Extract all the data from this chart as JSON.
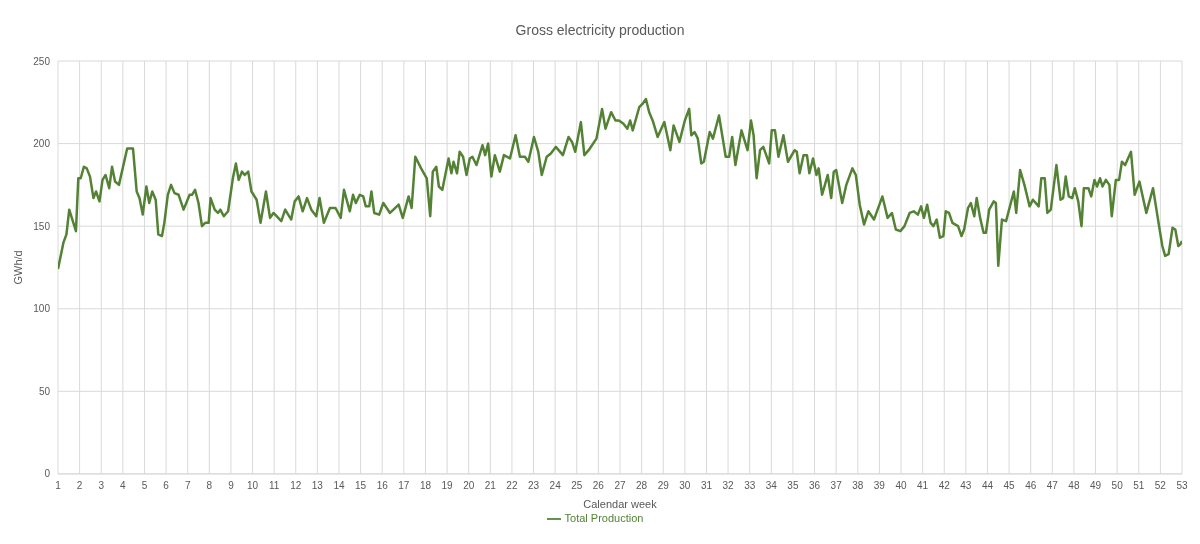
{
  "chart_data": {
    "type": "line",
    "title": "Gross electricity production",
    "xlabel": "Calendar week",
    "ylabel": "GWh/d",
    "grid": true,
    "legend": "bottom",
    "xlim": [
      1,
      53
    ],
    "xticks": [
      1,
      2,
      3,
      4,
      5,
      6,
      7,
      8,
      9,
      10,
      11,
      12,
      13,
      14,
      15,
      16,
      17,
      18,
      19,
      20,
      21,
      22,
      23,
      24,
      25,
      26,
      27,
      28,
      29,
      30,
      31,
      32,
      33,
      34,
      35,
      36,
      37,
      38,
      39,
      40,
      41,
      42,
      43,
      44,
      45,
      46,
      47,
      48,
      49,
      50,
      51,
      52,
      53
    ],
    "ylim": [
      0,
      250
    ],
    "yticks": [
      0,
      50,
      100,
      150,
      200,
      250
    ],
    "x": [
      1.0,
      1.25,
      1.39,
      1.52,
      1.83,
      1.94,
      2.05,
      2.2,
      2.33,
      2.48,
      2.64,
      2.76,
      2.92,
      3.06,
      3.2,
      3.37,
      3.5,
      3.64,
      3.82,
      4.2,
      4.47,
      4.64,
      4.77,
      4.92,
      5.09,
      5.22,
      5.36,
      5.52,
      5.64,
      5.81,
      5.92,
      6.08,
      6.23,
      6.39,
      6.58,
      6.81,
      7.09,
      7.2,
      7.34,
      7.5,
      7.66,
      7.81,
      7.97,
      8.06,
      8.25,
      8.4,
      8.51,
      8.67,
      8.87,
      9.09,
      9.23,
      9.36,
      9.51,
      9.64,
      9.8,
      9.95,
      10.19,
      10.37,
      10.62,
      10.81,
      10.97,
      11.33,
      11.51,
      11.79,
      11.95,
      12.13,
      12.32,
      12.52,
      12.72,
      12.95,
      13.1,
      13.3,
      13.58,
      13.84,
      14.08,
      14.23,
      14.5,
      14.65,
      14.78,
      14.96,
      15.12,
      15.24,
      15.4,
      15.5,
      15.63,
      15.86,
      16.05,
      16.36,
      16.76,
      16.95,
      17.22,
      17.36,
      17.53,
      17.8,
      18.06,
      18.22,
      18.34,
      18.5,
      18.62,
      18.78,
      19.07,
      19.2,
      19.3,
      19.46,
      19.58,
      19.74,
      19.9,
      20.05,
      20.17,
      20.36,
      20.64,
      20.76,
      20.9,
      21.05,
      21.21,
      21.44,
      21.63,
      21.91,
      22.17,
      22.37,
      22.6,
      22.76,
      23.02,
      23.22,
      23.38,
      23.61,
      23.8,
      24.03,
      24.36,
      24.62,
      24.78,
      24.93,
      25.19,
      25.35,
      25.55,
      25.91,
      26.17,
      26.33,
      26.59,
      26.79,
      26.95,
      27.16,
      27.34,
      27.47,
      27.59,
      27.89,
      28.04,
      28.2,
      28.35,
      28.51,
      28.74,
      29.05,
      29.33,
      29.48,
      29.75,
      30.0,
      30.2,
      30.3,
      30.45,
      30.6,
      30.76,
      30.88,
      31.15,
      31.3,
      31.58,
      31.89,
      32.05,
      32.19,
      32.34,
      32.62,
      32.9,
      33.06,
      33.18,
      33.32,
      33.48,
      33.63,
      33.9,
      34.02,
      34.17,
      34.33,
      34.56,
      34.77,
      35.08,
      35.18,
      35.31,
      35.49,
      35.65,
      35.76,
      35.93,
      36.09,
      36.19,
      36.35,
      36.61,
      36.77,
      36.89,
      37.0,
      37.28,
      37.47,
      37.75,
      37.91,
      38.09,
      38.29,
      38.49,
      38.75,
      39.14,
      39.38,
      39.58,
      39.76,
      39.97,
      40.16,
      40.4,
      40.59,
      40.78,
      40.93,
      41.06,
      41.21,
      41.37,
      41.5,
      41.65,
      41.8,
      41.96,
      42.07,
      42.22,
      42.38,
      42.64,
      42.8,
      42.92,
      43.1,
      43.23,
      43.39,
      43.5,
      43.66,
      43.82,
      43.93,
      44.08,
      44.29,
      44.39,
      44.5,
      44.67,
      44.86,
      45.0,
      45.22,
      45.33,
      45.51,
      45.71,
      45.95,
      46.1,
      46.37,
      46.49,
      46.65,
      46.77,
      46.93,
      47.19,
      47.38,
      47.5,
      47.62,
      47.76,
      47.92,
      48.04,
      48.2,
      48.35,
      48.46,
      48.67,
      48.8,
      48.95,
      49.07,
      49.21,
      49.32,
      49.48,
      49.64,
      49.75,
      49.94,
      50.09,
      50.22,
      50.37,
      50.64,
      50.81,
      51.03,
      51.35,
      51.66,
      51.94,
      52.09,
      52.22,
      52.38,
      52.56,
      52.69,
      52.83,
      52.92,
      53.0
    ],
    "series": [
      {
        "name": "Total Production",
        "color": "#548235",
        "values": [
          124,
          140,
          145,
          160,
          147,
          179,
          179,
          186,
          185,
          180,
          167,
          171,
          165,
          178,
          181,
          173,
          186,
          177,
          175,
          197,
          197,
          171,
          167,
          157,
          174,
          164,
          171,
          166,
          145,
          144,
          152,
          169,
          175,
          170,
          169,
          160,
          169,
          169,
          172,
          164,
          150,
          152,
          152,
          167,
          160,
          158,
          160,
          156,
          159,
          179,
          188,
          178,
          183,
          181,
          183,
          171,
          166,
          152,
          171,
          155,
          158,
          153,
          160,
          154,
          165,
          168,
          159,
          167,
          160,
          156,
          167,
          152,
          161,
          161,
          155,
          172,
          159,
          169,
          164,
          169,
          168,
          162,
          162,
          171,
          158,
          157,
          164,
          158,
          163,
          155,
          168,
          161,
          192,
          185,
          179,
          156,
          183,
          186,
          174,
          172,
          191,
          182,
          189,
          182,
          195,
          192,
          181,
          191,
          192,
          187,
          199,
          193,
          200,
          180,
          193,
          183,
          193,
          191,
          205,
          192,
          192,
          189,
          204,
          195,
          181,
          192,
          194,
          198,
          193,
          204,
          201,
          195,
          213,
          193,
          196,
          203,
          221,
          209,
          219,
          214,
          214,
          212,
          209,
          214,
          208,
          222,
          224,
          227,
          219,
          214,
          204,
          213,
          196,
          211,
          201,
          214,
          221,
          205,
          207,
          203,
          188,
          189,
          207,
          203,
          217,
          192,
          192,
          204,
          187,
          208,
          196,
          214,
          205,
          179,
          196,
          198,
          188,
          208,
          208,
          192,
          205,
          189,
          196,
          195,
          182,
          193,
          193,
          182,
          191,
          181,
          185,
          169,
          181,
          167,
          183,
          184,
          164,
          175,
          185,
          181,
          163,
          151,
          159,
          154,
          168,
          155,
          158,
          148,
          147,
          150,
          158,
          159,
          157,
          162,
          155,
          163,
          152,
          150,
          154,
          143,
          144,
          159,
          158,
          152,
          150,
          144,
          148,
          161,
          164,
          156,
          167,
          155,
          146,
          146,
          160,
          165,
          164,
          126,
          154,
          153,
          160,
          171,
          158,
          184,
          175,
          162,
          166,
          162,
          179,
          179,
          158,
          160,
          187,
          166,
          167,
          180,
          168,
          167,
          173,
          165,
          150,
          173,
          173,
          168,
          178,
          174,
          179,
          174,
          178,
          175,
          156,
          178,
          178,
          189,
          187,
          195,
          169,
          177,
          158,
          173,
          150,
          138,
          132,
          133,
          149,
          148,
          138,
          139,
          141
        ]
      }
    ]
  }
}
